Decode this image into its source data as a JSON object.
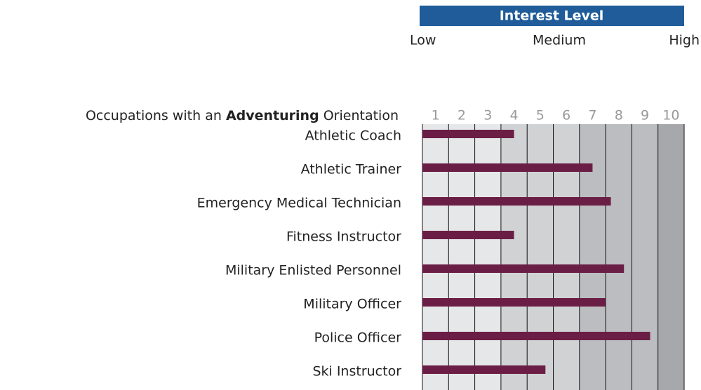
{
  "chart_data": {
    "type": "bar",
    "orientation": "horizontal",
    "header": "Interest Level",
    "scale_labels": [
      "Low",
      "Medium",
      "High"
    ],
    "title": [
      "Occupations with an ",
      "Adventuring",
      " Orientation"
    ],
    "categories": [
      "Athletic Coach",
      "Athletic Trainer",
      "Emergency Medical Technician",
      "Fitness Instructor",
      "Military Enlisted Personnel",
      "Military Officer",
      "Police Officer",
      "Ski Instructor"
    ],
    "values": [
      4,
      7,
      7.7,
      4,
      8.2,
      7.5,
      9.2,
      5.2
    ],
    "color": "#6b1e45",
    "header_color": "#1f5c99",
    "band_colors": [
      "#e6e7e9",
      "#e6e7e9",
      "#e6e7e9",
      "#d1d2d4",
      "#d1d2d4",
      "#d1d2d4",
      "#bcbdc0",
      "#bcbdc0",
      "#bcbdc0",
      "#a7a8ab"
    ],
    "xlim": [
      0.5,
      10.5
    ],
    "xticks": [
      1,
      2,
      3,
      4,
      5,
      6,
      7,
      8,
      9,
      10
    ]
  }
}
